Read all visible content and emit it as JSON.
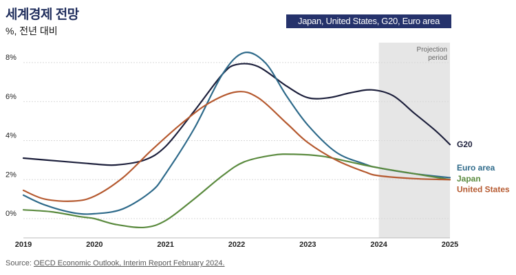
{
  "header": {
    "title": "세계경제 전망",
    "subtitle": "%, 전년 대비",
    "badge": "Japan, United States, G20, Euro area"
  },
  "source": {
    "prefix": "Source: ",
    "link": "OECD Economic Outlook, Interim Report February 2024."
  },
  "chart_data": {
    "type": "line",
    "title": "세계경제 전망",
    "subtitle": "%, 전년 대비",
    "xlabel": "",
    "ylabel": "",
    "xlim": [
      2019,
      2025
    ],
    "ylim": [
      -1,
      9
    ],
    "x_ticks": [
      "2019",
      "2020",
      "2021",
      "2022",
      "2023",
      "2024",
      "2025"
    ],
    "y_ticks": [
      "0%",
      "2%",
      "4%",
      "6%",
      "8%"
    ],
    "projection": {
      "label_line1": "Projection",
      "label_line2": "period",
      "start": 2024,
      "end": 2025,
      "color": "#e6e6e6"
    },
    "grid": true,
    "series": [
      {
        "name": "G20",
        "color": "#1c1f3b",
        "points": [
          [
            2019,
            3.1
          ],
          [
            2019.5,
            2.95
          ],
          [
            2020,
            2.8
          ],
          [
            2020.3,
            2.75
          ],
          [
            2020.7,
            3.0
          ],
          [
            2021,
            3.7
          ],
          [
            2021.4,
            5.5
          ],
          [
            2021.8,
            7.4
          ],
          [
            2022,
            7.9
          ],
          [
            2022.3,
            7.8
          ],
          [
            2022.7,
            6.8
          ],
          [
            2023,
            6.2
          ],
          [
            2023.3,
            6.2
          ],
          [
            2023.6,
            6.45
          ],
          [
            2023.9,
            6.6
          ],
          [
            2024.2,
            6.3
          ],
          [
            2024.5,
            5.4
          ],
          [
            2024.8,
            4.5
          ],
          [
            2025,
            3.8
          ]
        ]
      },
      {
        "name": "Euro area",
        "color": "#2e6a8a",
        "points": [
          [
            2019,
            1.2
          ],
          [
            2019.3,
            0.7
          ],
          [
            2019.7,
            0.3
          ],
          [
            2020,
            0.25
          ],
          [
            2020.4,
            0.5
          ],
          [
            2020.8,
            1.4
          ],
          [
            2021,
            2.3
          ],
          [
            2021.4,
            4.6
          ],
          [
            2021.8,
            7.4
          ],
          [
            2022.1,
            8.5
          ],
          [
            2022.4,
            8.0
          ],
          [
            2022.7,
            6.3
          ],
          [
            2023,
            4.8
          ],
          [
            2023.4,
            3.4
          ],
          [
            2023.8,
            2.8
          ],
          [
            2024,
            2.6
          ],
          [
            2024.5,
            2.3
          ],
          [
            2025,
            2.1
          ]
        ]
      },
      {
        "name": "Japan",
        "color": "#5a8a3e",
        "points": [
          [
            2019,
            0.45
          ],
          [
            2019.4,
            0.35
          ],
          [
            2019.8,
            0.1
          ],
          [
            2020,
            0.0
          ],
          [
            2020.3,
            -0.3
          ],
          [
            2020.7,
            -0.45
          ],
          [
            2021,
            -0.1
          ],
          [
            2021.4,
            1.0
          ],
          [
            2021.8,
            2.2
          ],
          [
            2022.1,
            2.9
          ],
          [
            2022.5,
            3.25
          ],
          [
            2022.8,
            3.3
          ],
          [
            2023.2,
            3.2
          ],
          [
            2023.6,
            2.9
          ],
          [
            2024,
            2.6
          ],
          [
            2024.5,
            2.3
          ],
          [
            2025,
            2.0
          ]
        ]
      },
      {
        "name": "United States",
        "color": "#b5592f",
        "points": [
          [
            2019,
            1.45
          ],
          [
            2019.3,
            1.0
          ],
          [
            2019.7,
            0.9
          ],
          [
            2020,
            1.15
          ],
          [
            2020.4,
            2.1
          ],
          [
            2020.8,
            3.5
          ],
          [
            2021.2,
            4.8
          ],
          [
            2021.6,
            5.9
          ],
          [
            2022,
            6.5
          ],
          [
            2022.3,
            6.2
          ],
          [
            2022.7,
            4.9
          ],
          [
            2023,
            3.9
          ],
          [
            2023.4,
            3.0
          ],
          [
            2023.8,
            2.4
          ],
          [
            2024,
            2.2
          ],
          [
            2024.5,
            2.05
          ],
          [
            2025,
            2.0
          ]
        ]
      }
    ],
    "end_labels": [
      {
        "text": "G20",
        "color": "#1c1f3b",
        "y": 3.8
      },
      {
        "text": "Euro area",
        "color": "#2e6a8a",
        "y": 2.6
      },
      {
        "text": "Japan",
        "color": "#5a8a3e",
        "y": 2.05
      },
      {
        "text": "United States",
        "color": "#b5592f",
        "y": 1.5
      }
    ]
  }
}
